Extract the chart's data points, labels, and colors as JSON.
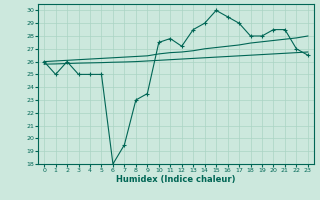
{
  "xlabel": "Humidex (Indice chaleur)",
  "bg_color": "#cce8dd",
  "grid_color": "#aad4c4",
  "line_color": "#006655",
  "xlim": [
    -0.5,
    23.5
  ],
  "ylim": [
    18,
    30.5
  ],
  "xticks": [
    0,
    1,
    2,
    3,
    4,
    5,
    6,
    7,
    8,
    9,
    10,
    11,
    12,
    13,
    14,
    15,
    16,
    17,
    18,
    19,
    20,
    21,
    22,
    23
  ],
  "yticks": [
    18,
    19,
    20,
    21,
    22,
    23,
    24,
    25,
    26,
    27,
    28,
    29,
    30
  ],
  "line1_x": [
    0,
    1,
    2,
    3,
    4,
    5,
    6,
    7,
    8,
    9,
    10,
    11,
    12,
    13,
    14,
    15,
    16,
    17,
    18,
    19,
    20,
    21,
    22,
    23
  ],
  "line1_y": [
    26,
    25,
    26,
    25,
    25,
    25,
    18,
    19.5,
    23,
    23.5,
    27.5,
    27.8,
    27.2,
    28.5,
    29,
    30,
    29.5,
    29,
    28,
    28,
    28.5,
    28.5,
    27,
    26.5
  ],
  "line2_x": [
    0,
    1,
    2,
    3,
    4,
    5,
    6,
    7,
    8,
    9,
    10,
    11,
    12,
    13,
    14,
    15,
    16,
    17,
    18,
    19,
    20,
    21,
    22,
    23
  ],
  "line2_y": [
    26.0,
    26.05,
    26.1,
    26.15,
    26.2,
    26.25,
    26.3,
    26.35,
    26.4,
    26.45,
    26.6,
    26.7,
    26.75,
    26.85,
    27.0,
    27.1,
    27.2,
    27.3,
    27.45,
    27.55,
    27.65,
    27.75,
    27.85,
    28.0
  ],
  "line3_x": [
    0,
    1,
    2,
    3,
    4,
    5,
    6,
    7,
    8,
    9,
    10,
    11,
    12,
    13,
    14,
    15,
    16,
    17,
    18,
    19,
    20,
    21,
    22,
    23
  ],
  "line3_y": [
    25.8,
    25.82,
    25.85,
    25.88,
    25.9,
    25.92,
    25.95,
    25.97,
    26.0,
    26.05,
    26.1,
    26.15,
    26.2,
    26.25,
    26.3,
    26.35,
    26.4,
    26.45,
    26.5,
    26.55,
    26.6,
    26.65,
    26.7,
    26.75
  ]
}
